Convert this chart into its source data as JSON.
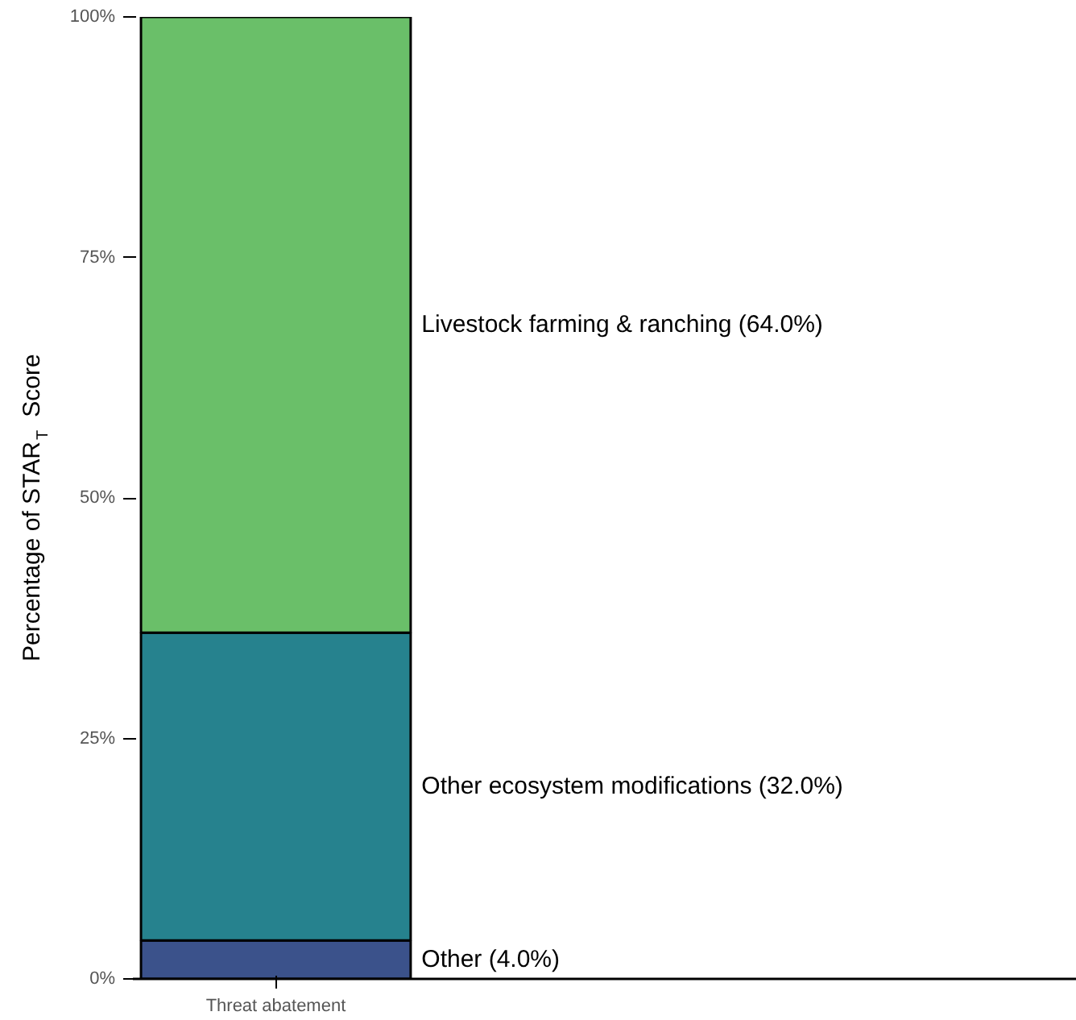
{
  "chart_data": {
    "type": "bar",
    "stacked": true,
    "ylabel": "Percentage of STAR$_{T}$ Score",
    "categories": [
      "Threat abatement"
    ],
    "series": [
      {
        "name": "Other (4.0%)",
        "color": "#3b528b",
        "values": [
          4.0
        ]
      },
      {
        "name": "Other ecosystem modifications (32.0%)",
        "color": "#26828e",
        "values": [
          32.0
        ]
      },
      {
        "name": "Livestock farming & ranching (64.0%)",
        "color": "#6abf69",
        "values": [
          64.0
        ]
      }
    ],
    "ylim": [
      0,
      100
    ],
    "yticks": [
      {
        "value": 0,
        "label": "0%"
      },
      {
        "value": 25,
        "label": "25%"
      },
      {
        "value": 50,
        "label": "50%"
      },
      {
        "value": 75,
        "label": "75%"
      },
      {
        "value": 100,
        "label": "100%"
      }
    ],
    "grid": false,
    "legend": false
  }
}
